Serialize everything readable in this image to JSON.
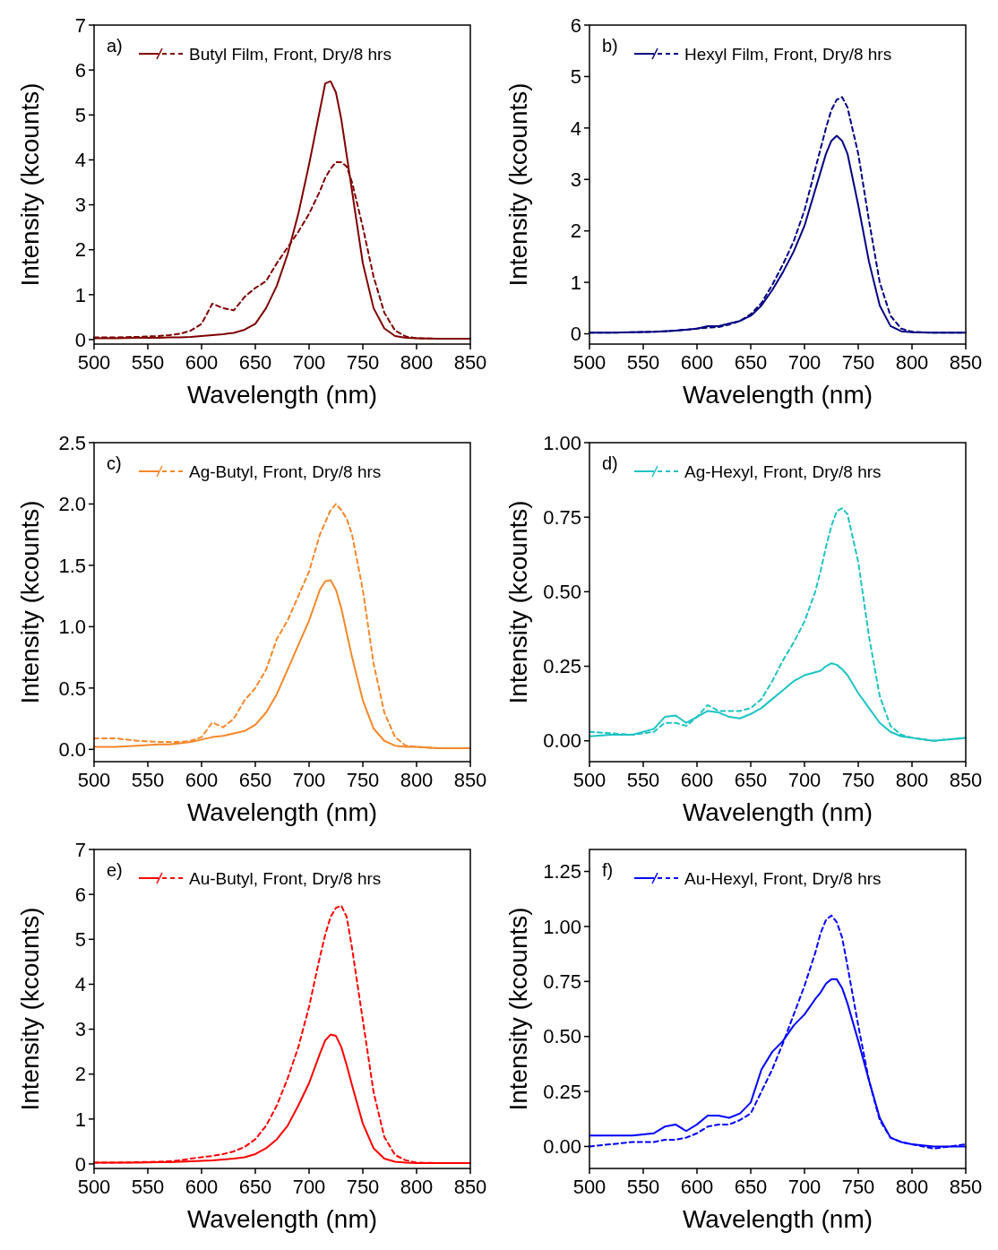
{
  "chart_data": [
    {
      "type": "line",
      "annotations": [
        "a)"
      ],
      "xlabel": "Wavelength (nm)",
      "ylabel": "Intensity (kcounts)",
      "xlim": [
        500,
        850
      ],
      "xticks": [
        500,
        550,
        600,
        650,
        700,
        750,
        800,
        850
      ],
      "ylim": [
        -0.1,
        7
      ],
      "yticks": [
        0,
        1,
        2,
        3,
        4,
        5,
        6,
        7
      ],
      "legend": "top left",
      "x": [
        500,
        520,
        540,
        560,
        570,
        580,
        590,
        600,
        610,
        620,
        630,
        640,
        650,
        660,
        670,
        680,
        690,
        700,
        710,
        715,
        720,
        725,
        730,
        735,
        740,
        750,
        760,
        770,
        780,
        790,
        800,
        820,
        850
      ],
      "series": [
        {
          "name": "Butyl Film, Front, Dry/8 hrs",
          "color": "#7f0000",
          "line_style": "solid",
          "values": [
            0.03,
            0.03,
            0.04,
            0.04,
            0.05,
            0.05,
            0.06,
            0.08,
            0.1,
            0.12,
            0.15,
            0.22,
            0.35,
            0.7,
            1.2,
            1.9,
            2.8,
            3.9,
            5.1,
            5.7,
            5.75,
            5.5,
            4.9,
            4.1,
            3.3,
            1.7,
            0.7,
            0.25,
            0.08,
            0.04,
            0.03,
            0.02,
            0.02
          ]
        },
        {
          "color": "#7f0000",
          "line_style": "dashed",
          "values": [
            0.05,
            0.05,
            0.06,
            0.08,
            0.1,
            0.13,
            0.2,
            0.35,
            0.8,
            0.7,
            0.65,
            0.95,
            1.15,
            1.3,
            1.7,
            2.05,
            2.4,
            2.8,
            3.3,
            3.6,
            3.8,
            3.95,
            3.95,
            3.85,
            3.5,
            2.5,
            1.4,
            0.6,
            0.2,
            0.07,
            0.03,
            0.02,
            0.02
          ]
        }
      ]
    },
    {
      "type": "line",
      "annotations": [
        "b)"
      ],
      "xlabel": "Wavelength (nm)",
      "ylabel": "Intensity (kcounts)",
      "xlim": [
        500,
        850
      ],
      "xticks": [
        500,
        550,
        600,
        650,
        700,
        750,
        800,
        850
      ],
      "ylim": [
        -0.2,
        6
      ],
      "yticks": [
        0,
        1,
        2,
        3,
        4,
        5,
        6
      ],
      "legend": "top left",
      "x": [
        500,
        520,
        540,
        560,
        570,
        580,
        590,
        600,
        610,
        620,
        630,
        640,
        650,
        660,
        670,
        680,
        690,
        700,
        710,
        715,
        720,
        725,
        730,
        735,
        740,
        750,
        760,
        770,
        780,
        790,
        800,
        820,
        850
      ],
      "series": [
        {
          "name": "Hexyl Film, Front, Dry/8 hrs",
          "color": "#000080",
          "line_style": "solid",
          "values": [
            0.02,
            0.02,
            0.03,
            0.04,
            0.05,
            0.06,
            0.08,
            0.1,
            0.15,
            0.15,
            0.2,
            0.25,
            0.35,
            0.55,
            0.85,
            1.2,
            1.6,
            2.1,
            2.8,
            3.15,
            3.5,
            3.75,
            3.85,
            3.75,
            3.5,
            2.5,
            1.4,
            0.55,
            0.15,
            0.05,
            0.03,
            0.02,
            0.02
          ]
        },
        {
          "color": "#000080",
          "line_style": "dashed",
          "values": [
            0.02,
            0.02,
            0.03,
            0.04,
            0.05,
            0.06,
            0.08,
            0.1,
            0.12,
            0.13,
            0.18,
            0.25,
            0.38,
            0.6,
            0.95,
            1.35,
            1.8,
            2.4,
            3.2,
            3.6,
            4.0,
            4.35,
            4.55,
            4.6,
            4.4,
            3.5,
            2.2,
            1.0,
            0.35,
            0.1,
            0.04,
            0.02,
            0.02
          ]
        }
      ]
    },
    {
      "type": "line",
      "annotations": [
        "c)"
      ],
      "xlabel": "Wavelength (nm)",
      "ylabel": "Intensity (kcounts)",
      "xlim": [
        500,
        850
      ],
      "xticks": [
        500,
        550,
        600,
        650,
        700,
        750,
        800,
        850
      ],
      "ylim": [
        -0.1,
        2.5
      ],
      "yticks": [
        {
          "value": 0,
          "label": "0.0"
        },
        0.5,
        {
          "value": 1,
          "label": "1.0"
        },
        1.5,
        {
          "value": 2,
          "label": "2.0"
        },
        2.5
      ],
      "legend": "top left",
      "x": [
        500,
        520,
        540,
        560,
        570,
        580,
        590,
        600,
        610,
        620,
        630,
        640,
        650,
        660,
        670,
        680,
        690,
        700,
        710,
        715,
        720,
        725,
        730,
        735,
        740,
        750,
        760,
        770,
        780,
        790,
        800,
        820,
        850
      ],
      "series": [
        {
          "name": "Ag-Butyl, Front, Dry/8 hrs",
          "color": "#f5882a",
          "line_style": "solid",
          "values": [
            0.02,
            0.02,
            0.03,
            0.04,
            0.04,
            0.05,
            0.06,
            0.08,
            0.1,
            0.11,
            0.13,
            0.15,
            0.2,
            0.3,
            0.45,
            0.65,
            0.85,
            1.05,
            1.3,
            1.37,
            1.38,
            1.3,
            1.15,
            0.95,
            0.75,
            0.4,
            0.17,
            0.07,
            0.03,
            0.02,
            0.02,
            0.01,
            0.01
          ]
        },
        {
          "color": "#f5882a",
          "line_style": "dashed",
          "values": [
            0.09,
            0.09,
            0.07,
            0.06,
            0.06,
            0.06,
            0.07,
            0.1,
            0.22,
            0.18,
            0.25,
            0.4,
            0.5,
            0.65,
            0.9,
            1.05,
            1.25,
            1.45,
            1.75,
            1.85,
            1.95,
            2.0,
            1.95,
            1.88,
            1.75,
            1.3,
            0.7,
            0.3,
            0.1,
            0.03,
            0.02,
            0.01,
            0.01
          ]
        }
      ]
    },
    {
      "type": "line",
      "annotations": [
        "d)"
      ],
      "xlabel": "Wavelength (nm)",
      "ylabel": "Intensity (kcounts)",
      "xlim": [
        500,
        850
      ],
      "xticks": [
        500,
        550,
        600,
        650,
        700,
        750,
        800,
        850
      ],
      "ylim": [
        -0.07,
        1
      ],
      "yticks": [
        {
          "value": 0,
          "label": "0.00"
        },
        {
          "value": 0.25,
          "label": "0.25"
        },
        {
          "value": 0.5,
          "label": "0.50"
        },
        {
          "value": 0.75,
          "label": "0.75"
        },
        {
          "value": 1,
          "label": "1.00"
        }
      ],
      "legend": "top left",
      "x": [
        500,
        520,
        540,
        560,
        570,
        580,
        590,
        600,
        610,
        620,
        630,
        640,
        650,
        660,
        670,
        680,
        690,
        700,
        710,
        715,
        720,
        725,
        730,
        735,
        740,
        750,
        760,
        770,
        780,
        790,
        800,
        820,
        850
      ],
      "series": [
        {
          "name": "Ag-Hexyl, Front, Dry/8 hrs",
          "color": "#1ec3c3",
          "line_style": "solid",
          "values": [
            0.015,
            0.02,
            0.02,
            0.04,
            0.08,
            0.085,
            0.06,
            0.08,
            0.1,
            0.095,
            0.08,
            0.075,
            0.09,
            0.11,
            0.14,
            0.17,
            0.2,
            0.22,
            0.23,
            0.235,
            0.25,
            0.26,
            0.255,
            0.24,
            0.22,
            0.16,
            0.11,
            0.06,
            0.03,
            0.015,
            0.01,
            0.0,
            0.01
          ]
        },
        {
          "color": "#1ec3c3",
          "line_style": "dashed",
          "values": [
            0.03,
            0.025,
            0.02,
            0.03,
            0.06,
            0.06,
            0.05,
            0.08,
            0.12,
            0.1,
            0.1,
            0.1,
            0.11,
            0.14,
            0.2,
            0.27,
            0.33,
            0.4,
            0.5,
            0.57,
            0.65,
            0.72,
            0.77,
            0.78,
            0.76,
            0.6,
            0.35,
            0.15,
            0.05,
            0.02,
            0.01,
            0.0,
            0.01
          ]
        }
      ]
    },
    {
      "type": "line",
      "annotations": [
        "e)"
      ],
      "xlabel": "Wavelength (nm)",
      "ylabel": "Intensity (kcounts)",
      "xlim": [
        500,
        850
      ],
      "xticks": [
        500,
        550,
        600,
        650,
        700,
        750,
        800,
        850
      ],
      "ylim": [
        -0.1,
        7
      ],
      "yticks": [
        0,
        1,
        2,
        3,
        4,
        5,
        6,
        7
      ],
      "legend": "top left",
      "x": [
        500,
        520,
        540,
        560,
        570,
        580,
        590,
        600,
        610,
        620,
        630,
        640,
        650,
        660,
        670,
        680,
        690,
        700,
        710,
        715,
        720,
        725,
        730,
        735,
        740,
        750,
        760,
        770,
        780,
        790,
        800,
        820,
        850
      ],
      "series": [
        {
          "name": "Au-Butyl, Front, Dry/8 hrs",
          "color": "#ff0000",
          "line_style": "solid",
          "values": [
            0.03,
            0.03,
            0.03,
            0.04,
            0.04,
            0.05,
            0.06,
            0.07,
            0.08,
            0.1,
            0.12,
            0.15,
            0.22,
            0.35,
            0.55,
            0.85,
            1.3,
            1.8,
            2.45,
            2.75,
            2.88,
            2.85,
            2.6,
            2.2,
            1.75,
            0.9,
            0.35,
            0.12,
            0.05,
            0.03,
            0.02,
            0.02,
            0.02
          ]
        },
        {
          "color": "#ff0000",
          "line_style": "dashed",
          "values": [
            0.03,
            0.03,
            0.04,
            0.05,
            0.06,
            0.08,
            0.12,
            0.15,
            0.18,
            0.22,
            0.28,
            0.38,
            0.55,
            0.85,
            1.3,
            1.9,
            2.6,
            3.5,
            4.6,
            5.1,
            5.5,
            5.7,
            5.75,
            5.5,
            4.8,
            3.2,
            1.6,
            0.6,
            0.2,
            0.08,
            0.03,
            0.02,
            0.02
          ]
        }
      ]
    },
    {
      "type": "line",
      "annotations": [
        "f)"
      ],
      "xlabel": "Wavelength (nm)",
      "ylabel": "Intensity (kcounts)",
      "xlim": [
        500,
        850
      ],
      "xticks": [
        500,
        550,
        600,
        650,
        700,
        750,
        800,
        850
      ],
      "ylim": [
        -0.1,
        1.35
      ],
      "yticks": [
        {
          "value": 0,
          "label": "0.00"
        },
        {
          "value": 0.25,
          "label": "0.25"
        },
        {
          "value": 0.5,
          "label": "0.50"
        },
        {
          "value": 0.75,
          "label": "0.75"
        },
        {
          "value": 1,
          "label": "1.00"
        },
        {
          "value": 1.25,
          "label": "1.25"
        }
      ],
      "legend": "top left",
      "x": [
        500,
        520,
        540,
        560,
        570,
        580,
        590,
        600,
        610,
        620,
        630,
        640,
        650,
        660,
        670,
        680,
        690,
        700,
        710,
        715,
        720,
        725,
        730,
        735,
        740,
        750,
        760,
        770,
        780,
        790,
        800,
        820,
        850
      ],
      "series": [
        {
          "name": "Au-Hexyl, Front, Dry/8 hrs",
          "color": "#0000ff",
          "line_style": "solid",
          "values": [
            0.05,
            0.05,
            0.05,
            0.06,
            0.09,
            0.1,
            0.07,
            0.1,
            0.14,
            0.14,
            0.13,
            0.15,
            0.2,
            0.35,
            0.43,
            0.48,
            0.55,
            0.6,
            0.67,
            0.7,
            0.74,
            0.76,
            0.76,
            0.72,
            0.65,
            0.48,
            0.3,
            0.13,
            0.04,
            0.02,
            0.01,
            0.0,
            0.0
          ]
        },
        {
          "color": "#0000ff",
          "line_style": "dashed",
          "values": [
            0.0,
            0.01,
            0.02,
            0.02,
            0.03,
            0.03,
            0.04,
            0.06,
            0.09,
            0.1,
            0.1,
            0.12,
            0.15,
            0.25,
            0.35,
            0.47,
            0.6,
            0.73,
            0.88,
            0.97,
            1.03,
            1.05,
            1.02,
            0.95,
            0.82,
            0.55,
            0.3,
            0.12,
            0.04,
            0.02,
            0.01,
            -0.01,
            0.01
          ]
        }
      ]
    }
  ]
}
